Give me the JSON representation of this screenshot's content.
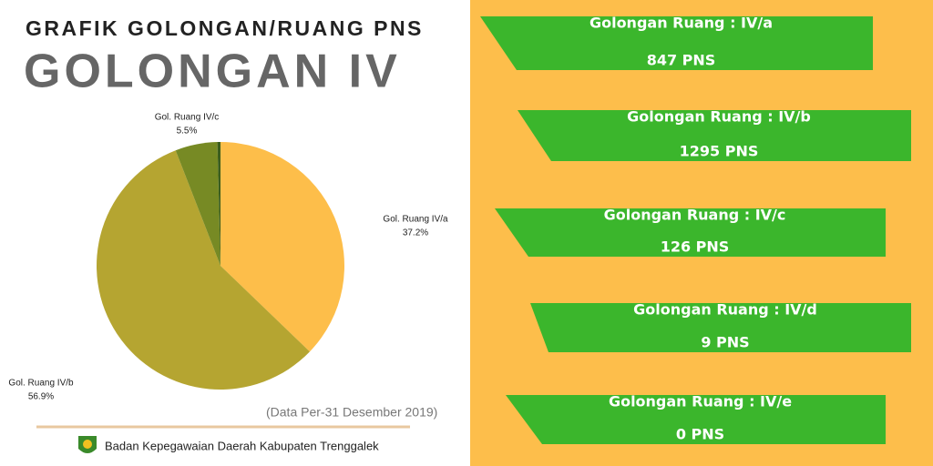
{
  "header": {
    "title": "GRAFIK GOLONGAN/RUANG PNS",
    "subtitle": "GOLONGAN IV"
  },
  "chart_data": {
    "type": "pie",
    "categories": [
      "Gol. Ruang IV/a",
      "Gol. Ruang IV/b",
      "Gol. Ruang IV/c",
      null
    ],
    "values": [
      37.2,
      56.9,
      5.5,
      0.4
    ],
    "value_labels": [
      "37.2%",
      "56.9%",
      "5.5%",
      null
    ],
    "colors": [
      "#fdbe4a",
      "#b5a531",
      "#778a24",
      "#3d5e1c"
    ]
  },
  "footer": {
    "note": "(Data Per-31 Desember 2019)",
    "org": "Badan Kepegawaian Daerah Kabupaten Trenggalek"
  },
  "cards": [
    {
      "title": "Golongan Ruang : IV/a",
      "value": "847 PNS"
    },
    {
      "title": "Golongan Ruang : IV/b",
      "value": "1295 PNS"
    },
    {
      "title": "Golongan Ruang : IV/c",
      "value": "126 PNS"
    },
    {
      "title": "Golongan Ruang : IV/d",
      "value": "9 PNS"
    },
    {
      "title": "Golongan Ruang : IV/e",
      "value": "0 PNS"
    }
  ]
}
